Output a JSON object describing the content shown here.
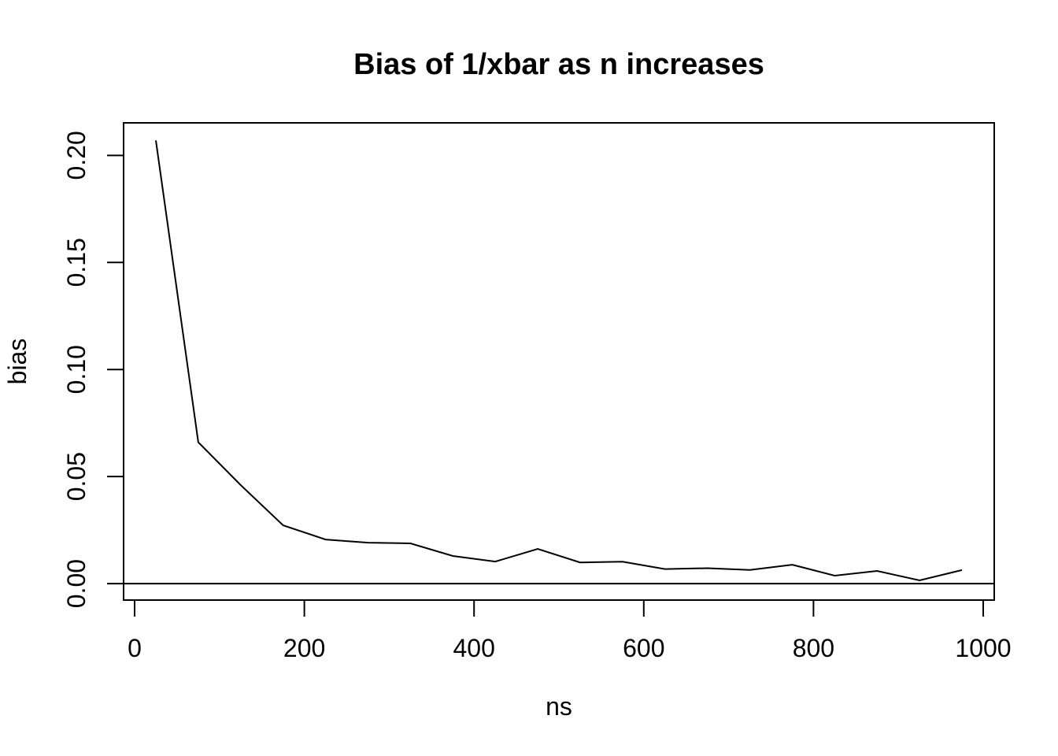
{
  "chart_data": {
    "type": "line",
    "title": "Bias of 1/xbar as n increases",
    "xlabel": "ns",
    "ylabel": "bias",
    "x": [
      25,
      75,
      125,
      175,
      225,
      275,
      325,
      375,
      425,
      475,
      525,
      575,
      625,
      675,
      725,
      775,
      825,
      875,
      925,
      975
    ],
    "y": [
      0.207,
      0.066,
      0.046,
      0.0272,
      0.0206,
      0.0191,
      0.0188,
      0.0129,
      0.0103,
      0.0162,
      0.0099,
      0.0102,
      0.0068,
      0.0072,
      0.0064,
      0.0088,
      0.0037,
      0.0059,
      0.0015,
      0.0063
    ],
    "x_ticks": {
      "values": [
        0,
        200,
        400,
        600,
        800,
        1000
      ],
      "labels": [
        "0",
        "200",
        "400",
        "600",
        "800",
        "1000"
      ]
    },
    "y_ticks": {
      "values": [
        0,
        0.05,
        0.1,
        0.15,
        0.2
      ],
      "labels": [
        "0.00",
        "0.05",
        "0.10",
        "0.15",
        "0.20"
      ]
    },
    "xlim": [
      -13,
      1013
    ],
    "ylim": [
      -0.0077,
      0.2152
    ],
    "hline": 0,
    "grid": false,
    "legend_position": "none",
    "line_color": "#000000",
    "axis_color": "#000000",
    "background_color": "#ffffff"
  }
}
